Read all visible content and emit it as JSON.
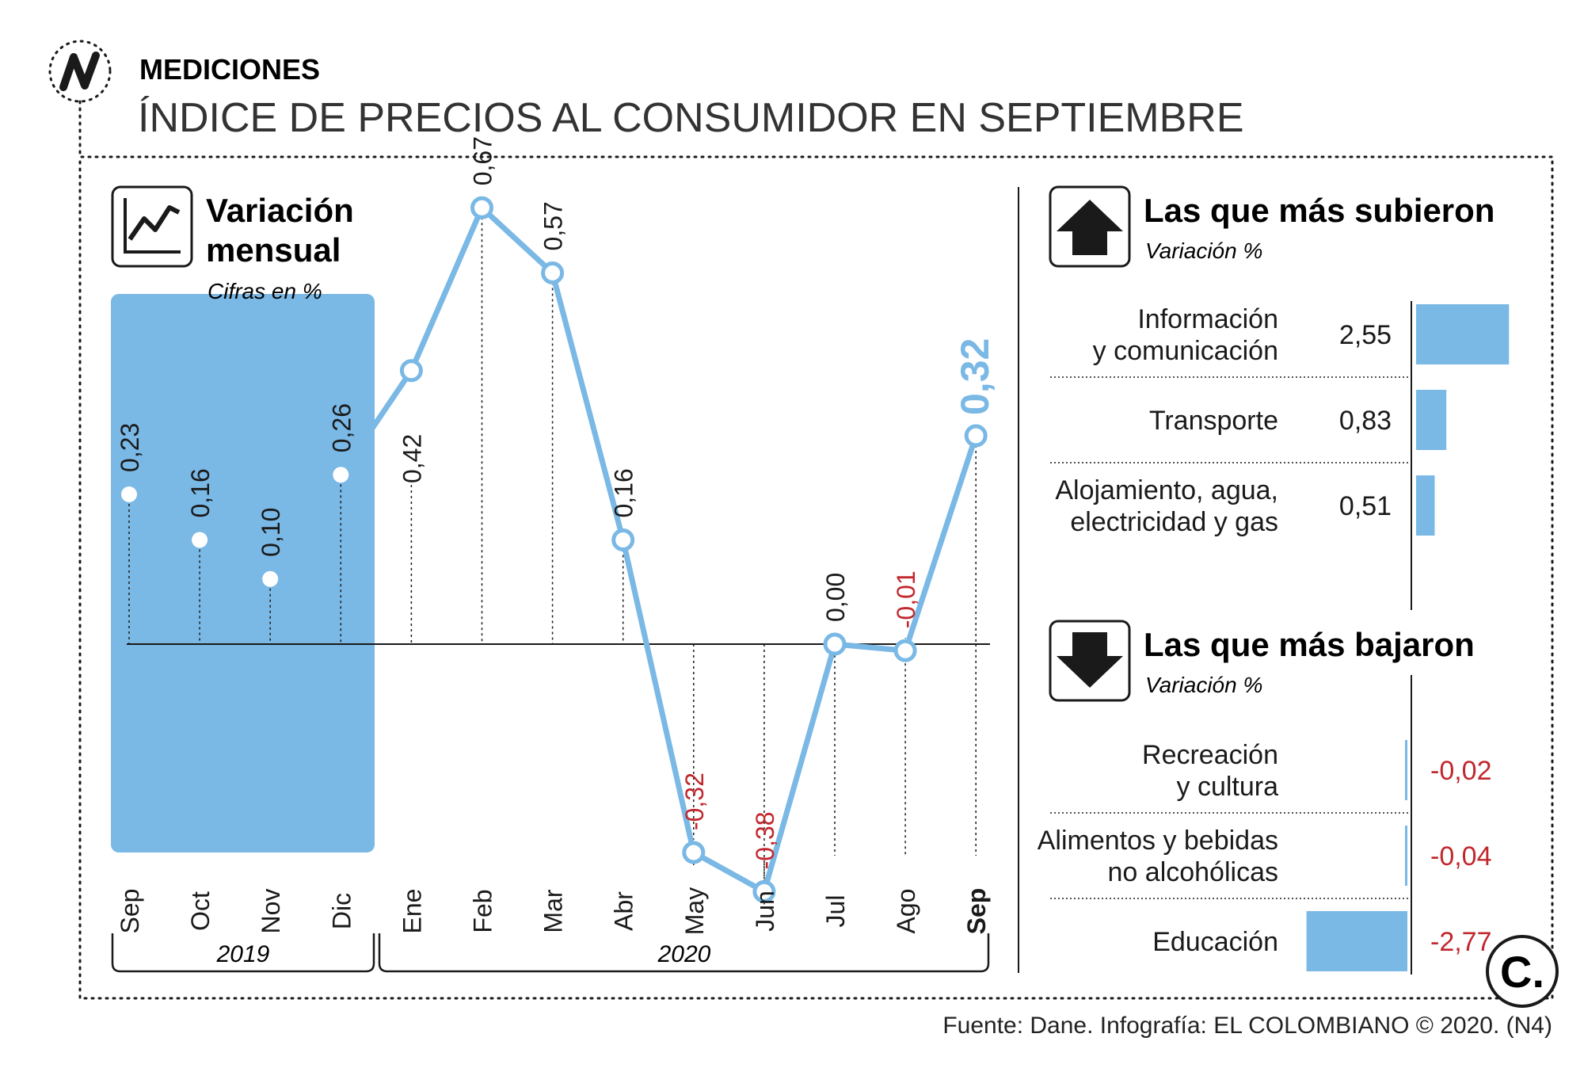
{
  "header": {
    "section": "MEDICIONES",
    "title": "ÍNDICE DE PRECIOS AL CONSUMIDOR EN SEPTIEMBRE",
    "logo_letter": "N"
  },
  "colors": {
    "accent": "#7ab8e5",
    "negative": "#c1272d",
    "text": "#1a1a1a"
  },
  "line_panel": {
    "title_line1": "Variación",
    "title_line2": "mensual",
    "subtitle": "Cifras en %",
    "icon": "line-chart-icon",
    "highlight_label": "0,32"
  },
  "bars_up_panel": {
    "title": "Las que más subieron",
    "subtitle": "Variación %",
    "icon": "arrow-up-icon"
  },
  "bars_down_panel": {
    "title": "Las que más bajaron",
    "subtitle": "Variación %",
    "icon": "arrow-down-icon"
  },
  "footer": {
    "source": "Fuente: Dane. Infografía: EL COLOMBIANO © 2020. (N4)",
    "brand_letter": "C."
  },
  "chart_data": [
    {
      "type": "line",
      "title": "Variación mensual",
      "subtitle": "Cifras en %",
      "x": [
        "Sep",
        "Oct",
        "Nov",
        "Dic",
        "Ene",
        "Feb",
        "Mar",
        "Abr",
        "May",
        "Jun",
        "Jul",
        "Ago",
        "Sep"
      ],
      "year_groups": [
        {
          "label": "2019",
          "months": [
            "Sep",
            "Oct",
            "Nov",
            "Dic"
          ]
        },
        {
          "label": "2020",
          "months": [
            "Ene",
            "Feb",
            "Mar",
            "Abr",
            "May",
            "Jun",
            "Jul",
            "Ago",
            "Sep"
          ]
        }
      ],
      "series": [
        {
          "values": [
            0.23,
            0.16,
            0.1,
            0.26,
            0.42,
            0.67,
            0.57,
            0.16,
            -0.32,
            -0.38,
            0.0,
            -0.01,
            0.32
          ],
          "labels": [
            "0,23",
            "0,16",
            "0,10",
            "0,26",
            "0,42",
            "0,67",
            "0,57",
            "0,16",
            "-0,32",
            "-0,38",
            "0,00",
            "-0,01",
            "0,32"
          ]
        }
      ],
      "ylim": [
        -0.38,
        0.67
      ],
      "highlighted_period": "2019"
    },
    {
      "type": "bar",
      "title": "Las que más subieron",
      "subtitle": "Variación %",
      "categories": [
        "Información\ny comunicación",
        "Transporte",
        "Alojamiento, agua,\nelectricidad y gas"
      ],
      "values": [
        2.55,
        0.83,
        0.51
      ],
      "labels": [
        "2,55",
        "0,83",
        "0,51"
      ]
    },
    {
      "type": "bar",
      "title": "Las que más bajaron",
      "subtitle": "Variación %",
      "categories": [
        "Recreación\ny cultura",
        "Alimentos y bebidas\nno alcohólicas",
        "Educación"
      ],
      "values": [
        -0.02,
        -0.04,
        -2.77
      ],
      "labels": [
        "-0,02",
        "-0,04",
        "-2,77"
      ]
    }
  ]
}
